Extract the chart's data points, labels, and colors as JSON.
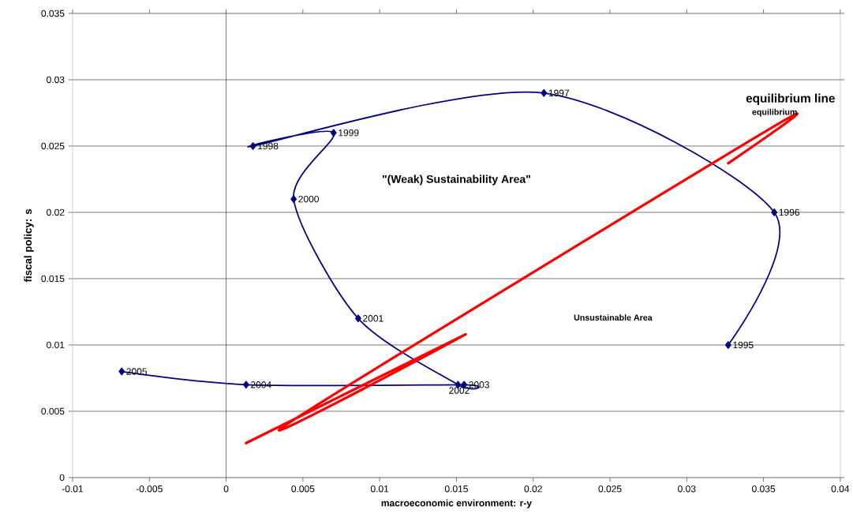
{
  "chart_data": {
    "type": "line",
    "xlabel": "macroeconomic environment: r-y",
    "ylabel": "fiscal policy: s",
    "xlim": [
      -0.01,
      0.04
    ],
    "xticks": [
      -0.01,
      -0.005,
      0,
      0.005,
      0.01,
      0.015,
      0.02,
      0.025,
      0.03,
      0.035,
      0.04
    ],
    "ylim": [
      0,
      0.035
    ],
    "yticks": [
      0,
      0.005,
      0.01,
      0.015,
      0.02,
      0.025,
      0.03,
      0.035
    ],
    "grid": "y",
    "legend": false,
    "ref_lines": [
      {
        "axis": "x",
        "value": 0,
        "color": "#000000"
      }
    ],
    "series": [
      {
        "x": [
          0.0327,
          0.0357,
          0.0207,
          0.00175,
          0.007,
          0.0044,
          0.0086,
          0.0151,
          0.0155,
          0.0013,
          -0.0068
        ],
        "values": [
          0.01,
          0.02,
          0.029,
          0.025,
          0.026,
          0.021,
          0.012,
          0.007,
          0.007,
          0.007,
          0.008
        ],
        "color": "#000080",
        "marker": "diamond",
        "line_style": "solid"
      },
      {
        "name": "equilibrium",
        "x": [
          0.0013,
          0.0156,
          0.0038,
          0.036,
          0.0327
        ],
        "values": [
          0.0026,
          0.0108,
          0.0039,
          0.0267,
          0.0237
        ],
        "color": "#ff0000",
        "marker": "none",
        "line_style": "solid"
      }
    ],
    "annotations": [
      {
        "text": "1995",
        "x": 0.0327,
        "y": 0.01
      },
      {
        "text": "1996",
        "x": 0.0357,
        "y": 0.02
      },
      {
        "text": "1997",
        "x": 0.0207,
        "y": 0.029
      },
      {
        "text": "1998",
        "x": 0.00175,
        "y": 0.025
      },
      {
        "text": "1999",
        "x": 0.007,
        "y": 0.026
      },
      {
        "text": "2000",
        "x": 0.0044,
        "y": 0.021
      },
      {
        "text": "2001",
        "x": 0.0086,
        "y": 0.012
      },
      {
        "text": "2002",
        "x": 0.0151,
        "y": 0.007
      },
      {
        "text": "2003",
        "x": 0.0155,
        "y": 0.007
      },
      {
        "text": "2004",
        "x": 0.0013,
        "y": 0.007
      },
      {
        "text": "2005",
        "x": -0.0068,
        "y": 0.008
      },
      "\"(Weak) Sustainability Area\"",
      "Unsustainable Area",
      "equilibrium  line"
    ]
  }
}
